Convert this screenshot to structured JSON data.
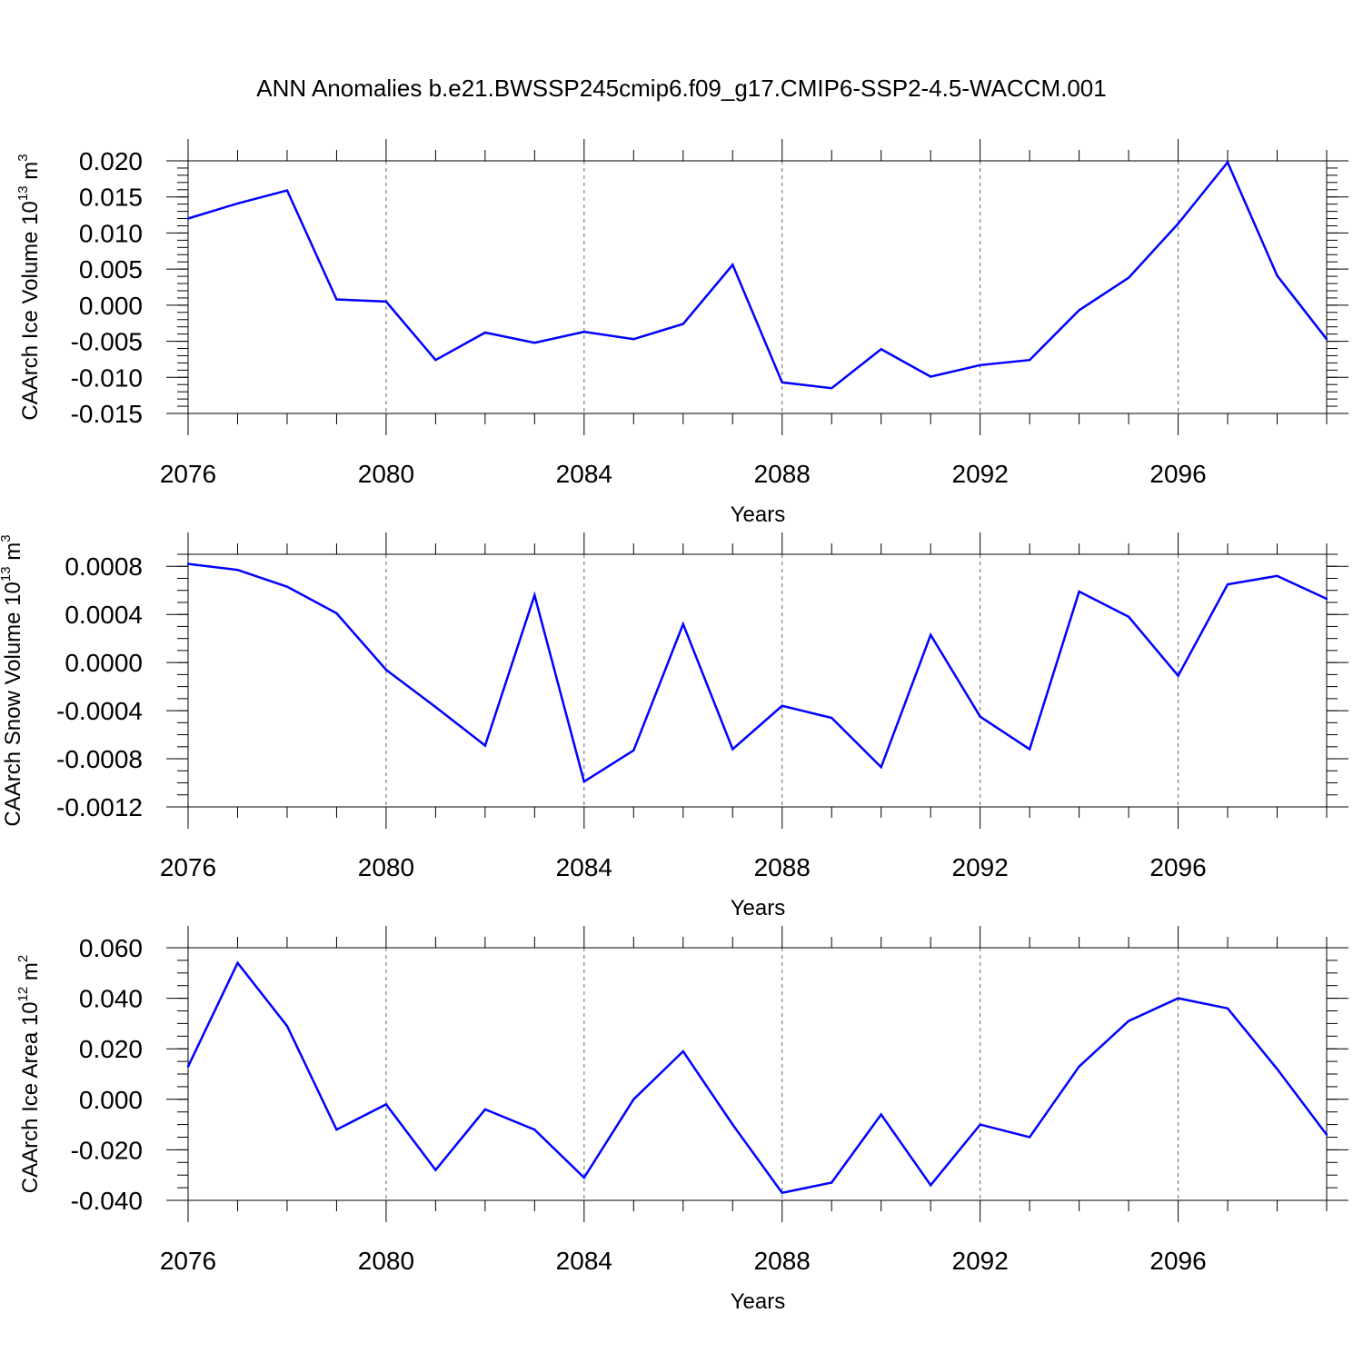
{
  "title": "ANN Anomalies b.e21.BWSSP245cmip6.f09_g17.CMIP6-SSP2-4.5-WACCM.001",
  "colors": {
    "line": "#0000ff",
    "axis": "#000000",
    "grid": "#666666"
  },
  "chart_data": [
    {
      "type": "line",
      "xlabel": "Years",
      "ylabel": {
        "text": "CAArch Ice Volume 10",
        "exp": "13",
        "unit": " m",
        "unit_exp": "3"
      },
      "x": [
        2076,
        2077,
        2078,
        2079,
        2080,
        2081,
        2082,
        2083,
        2084,
        2085,
        2086,
        2087,
        2088,
        2089,
        2090,
        2091,
        2092,
        2093,
        2094,
        2095,
        2096,
        2097,
        2098,
        2099
      ],
      "values": [
        0.012,
        0.0141,
        0.0159,
        0.0008,
        0.0005,
        -0.0076,
        -0.0038,
        -0.0052,
        -0.0037,
        -0.0047,
        -0.0026,
        0.0056,
        -0.0107,
        -0.0115,
        -0.0061,
        -0.0099,
        -0.0083,
        -0.0076,
        -0.0007,
        0.0038,
        0.0113,
        0.0198,
        0.0041,
        -0.0047
      ],
      "xlim": [
        2076,
        2099
      ],
      "ylim": [
        -0.015,
        0.02
      ],
      "xticks": [
        2076,
        2080,
        2084,
        2088,
        2092,
        2096
      ],
      "yticks": [
        -0.015,
        -0.01,
        -0.005,
        0.0,
        0.005,
        0.01,
        0.015,
        0.02
      ],
      "ytick_labels": [
        "-0.015",
        "-0.010",
        "-0.005",
        "0.000",
        "0.005",
        "0.010",
        "0.015",
        "0.020"
      ],
      "xtick_labels": [
        "2076",
        "2080",
        "2084",
        "2088",
        "2092",
        "2096"
      ],
      "grid": "vertical dashed at major x ticks"
    },
    {
      "type": "line",
      "xlabel": "Years",
      "ylabel": {
        "text": "CAArch Snow Volume 10",
        "exp": "13",
        "unit": " m",
        "unit_exp": "3"
      },
      "x": [
        2076,
        2077,
        2078,
        2079,
        2080,
        2081,
        2082,
        2083,
        2084,
        2085,
        2086,
        2087,
        2088,
        2089,
        2090,
        2091,
        2092,
        2093,
        2094,
        2095,
        2096,
        2097,
        2098,
        2099
      ],
      "values": [
        0.00082,
        0.00077,
        0.00063,
        0.00041,
        -6e-05,
        -0.00037,
        -0.00069,
        0.00056,
        -0.00099,
        -0.00073,
        0.00032,
        -0.00072,
        -0.00036,
        -0.00046,
        -0.00087,
        0.00023,
        -0.00045,
        -0.00072,
        0.00059,
        0.00038,
        -0.00011,
        0.00065,
        0.00072,
        0.00053
      ],
      "xlim": [
        2076,
        2099
      ],
      "ylim": [
        -0.0012,
        0.0009
      ],
      "xticks": [
        2076,
        2080,
        2084,
        2088,
        2092,
        2096
      ],
      "yticks": [
        -0.0012,
        -0.0008,
        -0.0004,
        0.0,
        0.0004,
        0.0008
      ],
      "ytick_labels": [
        "-0.0012",
        "-0.0008",
        "-0.0004",
        "0.0000",
        "0.0004",
        "0.0008"
      ],
      "xtick_labels": [
        "2076",
        "2080",
        "2084",
        "2088",
        "2092",
        "2096"
      ],
      "grid": "vertical dashed at major x ticks"
    },
    {
      "type": "line",
      "xlabel": "Years",
      "ylabel": {
        "text": "CAArch Ice Area 10",
        "exp": "12",
        "unit": " m",
        "unit_exp": "2"
      },
      "x": [
        2076,
        2077,
        2078,
        2079,
        2080,
        2081,
        2082,
        2083,
        2084,
        2085,
        2086,
        2087,
        2088,
        2089,
        2090,
        2091,
        2092,
        2093,
        2094,
        2095,
        2096,
        2097,
        2098,
        2099
      ],
      "values": [
        0.013,
        0.054,
        0.029,
        -0.012,
        -0.002,
        -0.028,
        -0.004,
        -0.012,
        -0.031,
        0.0,
        0.019,
        -0.01,
        -0.037,
        -0.033,
        -0.006,
        -0.034,
        -0.01,
        -0.015,
        0.013,
        0.031,
        0.04,
        0.036,
        0.012,
        -0.014
      ],
      "xlim": [
        2076,
        2099
      ],
      "ylim": [
        -0.04,
        0.06
      ],
      "xticks": [
        2076,
        2080,
        2084,
        2088,
        2092,
        2096
      ],
      "yticks": [
        -0.04,
        -0.02,
        0.0,
        0.02,
        0.04,
        0.06
      ],
      "ytick_labels": [
        "-0.040",
        "-0.020",
        "0.000",
        "0.020",
        "0.040",
        "0.060"
      ],
      "xtick_labels": [
        "2076",
        "2080",
        "2084",
        "2088",
        "2092",
        "2096"
      ],
      "grid": "vertical dashed at major x ticks"
    }
  ]
}
